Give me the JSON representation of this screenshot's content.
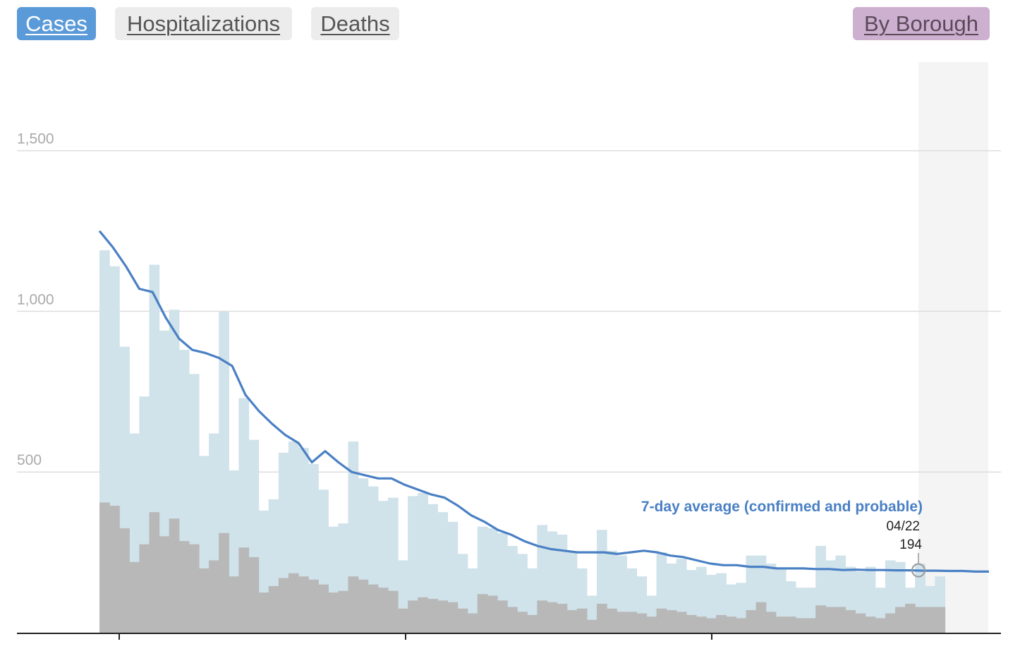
{
  "tabs": {
    "cases": "Cases",
    "hospitalizations": "Hospitalizations",
    "deaths": "Deaths",
    "by_borough": "By Borough"
  },
  "colors": {
    "tab_active": "#5b9ad9",
    "tab_inactive": "#ececec",
    "tab_borough": "#cdb0cf",
    "bar_total": "#d0e2ea",
    "bar_confirmed": "#b8b8b8",
    "line": "#4a80c4",
    "highlight": "#f4f4f4",
    "grid": "#dddddd"
  },
  "chart_data": {
    "type": "bar",
    "title": "",
    "xlabel": "",
    "ylabel": "",
    "ylim": [
      0,
      1750
    ],
    "yticks": [
      500,
      1000,
      1500
    ],
    "ytick_labels": [
      "500",
      "1,000",
      "1,500"
    ],
    "grid": true,
    "series": [
      {
        "name": "",
        "values": [
          1190,
          1140,
          890,
          620,
          735,
          1145,
          940,
          1005,
          880,
          805,
          550,
          620,
          1000,
          505,
          730,
          600,
          380,
          415,
          560,
          595,
          575,
          525,
          445,
          330,
          340,
          595,
          480,
          455,
          410,
          420,
          225,
          425,
          435,
          400,
          375,
          345,
          245,
          200,
          330,
          325,
          310,
          270,
          245,
          200,
          335,
          315,
          305,
          250,
          200,
          115,
          320,
          255,
          240,
          200,
          175,
          115,
          250,
          215,
          230,
          195,
          205,
          180,
          185,
          150,
          155,
          240,
          240,
          215,
          200,
          160,
          140,
          140,
          270,
          225,
          240,
          205,
          190,
          205,
          140,
          225,
          220,
          140,
          215,
          145,
          175
        ]
      },
      {
        "name": "",
        "values": [
          405,
          395,
          325,
          220,
          275,
          375,
          300,
          355,
          285,
          275,
          200,
          225,
          310,
          175,
          265,
          235,
          125,
          145,
          170,
          185,
          175,
          165,
          150,
          125,
          130,
          175,
          165,
          150,
          140,
          130,
          75,
          100,
          110,
          105,
          100,
          95,
          75,
          60,
          120,
          115,
          100,
          80,
          65,
          55,
          100,
          95,
          90,
          70,
          75,
          40,
          90,
          75,
          65,
          65,
          60,
          50,
          75,
          70,
          65,
          55,
          50,
          45,
          55,
          50,
          45,
          70,
          95,
          65,
          50,
          50,
          45,
          45,
          85,
          80,
          80,
          70,
          60,
          50,
          45,
          60,
          80,
          90,
          80,
          80,
          80
        ]
      },
      {
        "name": "7-day average (confirmed and probable)",
        "values": [
          1250,
          1200,
          1140,
          1070,
          1060,
          980,
          915,
          880,
          870,
          855,
          830,
          740,
          690,
          650,
          615,
          590,
          530,
          565,
          530,
          500,
          490,
          480,
          480,
          460,
          445,
          430,
          420,
          395,
          365,
          345,
          320,
          305,
          285,
          270,
          260,
          255,
          250,
          250,
          250,
          245,
          250,
          255,
          250,
          240,
          235,
          225,
          215,
          210,
          210,
          205,
          205,
          200,
          200,
          200,
          198,
          198,
          195,
          196,
          195,
          195,
          194,
          194,
          193,
          193,
          192,
          192,
          190,
          190
        ]
      }
    ],
    "annotation": {
      "label": "7-day average (confirmed and probable)",
      "date": "04/22",
      "value": "194"
    }
  }
}
